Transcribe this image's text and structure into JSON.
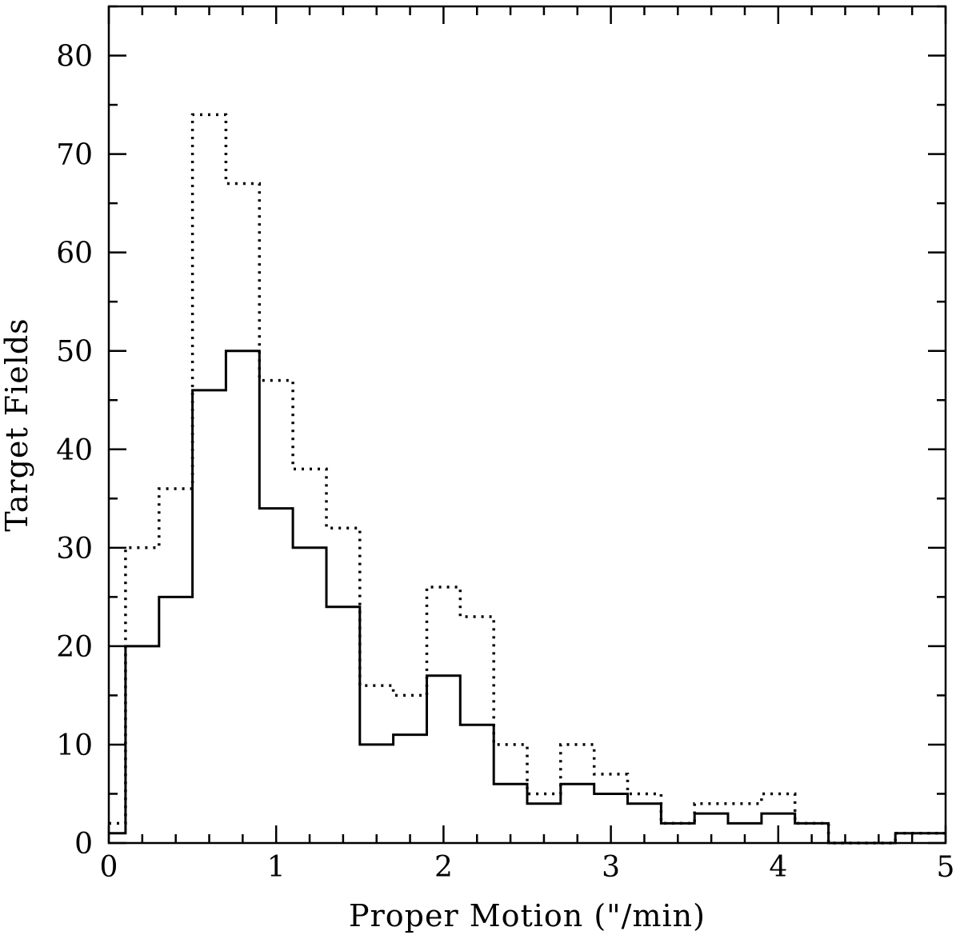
{
  "chart_data": {
    "type": "histogram",
    "xlabel": "Proper Motion (\"/min)",
    "ylabel": "Target Fields",
    "xlim": [
      0,
      5
    ],
    "ylim": [
      0,
      85
    ],
    "x_ticks": [
      "0",
      "1",
      "2",
      "3",
      "4",
      "5"
    ],
    "y_ticks": [
      "0",
      "10",
      "20",
      "30",
      "40",
      "50",
      "60",
      "70",
      "80"
    ],
    "grid": false,
    "bin_edges": [
      0,
      0.1,
      0.3,
      0.5,
      0.7,
      0.9,
      1.1,
      1.3,
      1.5,
      1.7,
      1.9,
      2.1,
      2.3,
      2.5,
      2.7,
      2.9,
      3.1,
      3.3,
      3.5,
      3.7,
      3.9,
      4.1,
      4.3,
      4.5,
      4.7,
      4.9,
      5.0
    ],
    "series": [
      {
        "style": "solid",
        "values": [
          1,
          20,
          25,
          46,
          50,
          34,
          30,
          24,
          10,
          11,
          17,
          12,
          6,
          4,
          6,
          5,
          4,
          2,
          3,
          2,
          3,
          2,
          0,
          0,
          1,
          1
        ]
      },
      {
        "style": "dotted",
        "values": [
          2,
          30,
          36,
          74,
          67,
          47,
          38,
          32,
          16,
          15,
          26,
          23,
          10,
          5,
          10,
          7,
          5,
          2,
          4,
          4,
          5,
          2,
          0,
          0,
          1,
          1
        ]
      }
    ]
  }
}
